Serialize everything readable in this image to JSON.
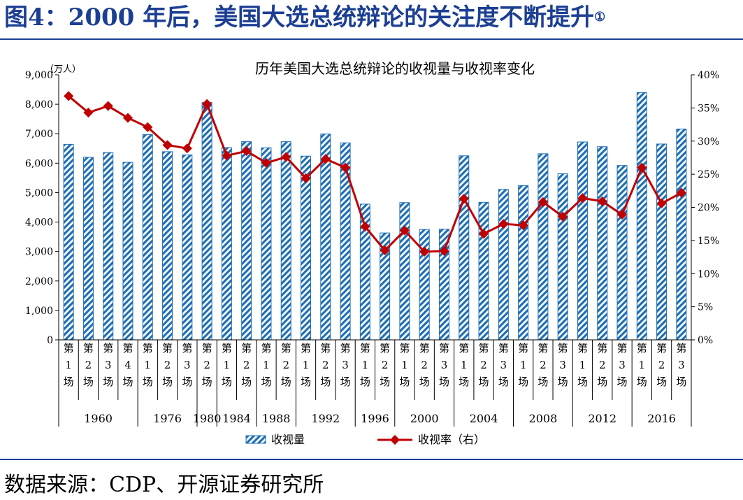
{
  "figure": {
    "title": "图4：2000 年后，美国大选总统辩论的关注度不断提升",
    "title_note": "①",
    "source": "数据来源：CDP、开源证券研究所"
  },
  "colors": {
    "bar": "#1f6fb5",
    "line": "#c00000",
    "title": "#1c3f94"
  },
  "chart_data": {
    "type": "bar+line",
    "title": "历年美国大选总统辩论的收视量与收视率变化",
    "left_axis": {
      "unit": "（万人）",
      "ylim": [
        0,
        9000
      ],
      "ticks": [
        "0",
        "1,000",
        "2,000",
        "3,000",
        "4,000",
        "5,000",
        "6,000",
        "7,000",
        "8,000",
        "9,000"
      ]
    },
    "right_axis": {
      "ylim": [
        0,
        40
      ],
      "ticks": [
        "0%",
        "5%",
        "10%",
        "15%",
        "20%",
        "25%",
        "30%",
        "35%",
        "40%"
      ]
    },
    "categories": [
      "第1场",
      "第2场",
      "第3场",
      "第4场",
      "第1场",
      "第2场",
      "第3场",
      "第2场",
      "第1场",
      "第2场",
      "第1场",
      "第2场",
      "第1场",
      "第2场",
      "第3场",
      "第1场",
      "第2场",
      "第1场",
      "第2场",
      "第3场",
      "第1场",
      "第2场",
      "第3场",
      "第1场",
      "第2场",
      "第3场",
      "第1场",
      "第2场",
      "第3场",
      "第1场",
      "第2场",
      "第3场"
    ],
    "groups": [
      {
        "label": "1960",
        "count": 4
      },
      {
        "label": "1976",
        "count": 3
      },
      {
        "label": "1980",
        "count": 1
      },
      {
        "label": "1984",
        "count": 2
      },
      {
        "label": "1988",
        "count": 2
      },
      {
        "label": "1992",
        "count": 3
      },
      {
        "label": "1996",
        "count": 2
      },
      {
        "label": "2000",
        "count": 3
      },
      {
        "label": "2004",
        "count": 3
      },
      {
        "label": "2008",
        "count": 3
      },
      {
        "label": "2012",
        "count": 3
      },
      {
        "label": "2016",
        "count": 3
      }
    ],
    "series": [
      {
        "name": "收视量",
        "axis": "left",
        "type": "bar",
        "values": [
          6640,
          6200,
          6360,
          6030,
          6970,
          6390,
          6280,
          8060,
          6530,
          6730,
          6520,
          6730,
          6240,
          6990,
          6690,
          4610,
          3630,
          4660,
          3750,
          3760,
          6250,
          4670,
          5110,
          5240,
          6320,
          5640,
          6720,
          6560,
          5920,
          8400,
          6650,
          7160
        ]
      },
      {
        "name": "收视率（右）",
        "axis": "right",
        "type": "line",
        "values": [
          36.8,
          34.3,
          35.3,
          33.5,
          32.1,
          29.4,
          28.9,
          35.6,
          27.8,
          28.5,
          26.7,
          27.6,
          24.4,
          27.3,
          26.0,
          17.1,
          13.5,
          16.5,
          13.3,
          13.4,
          21.3,
          16.0,
          17.5,
          17.3,
          20.8,
          18.6,
          21.4,
          20.9,
          18.9,
          26.0,
          20.6,
          22.2
        ]
      }
    ],
    "legend": {
      "position": "bottom",
      "items": [
        "收视量",
        "收视率（右）"
      ]
    }
  }
}
